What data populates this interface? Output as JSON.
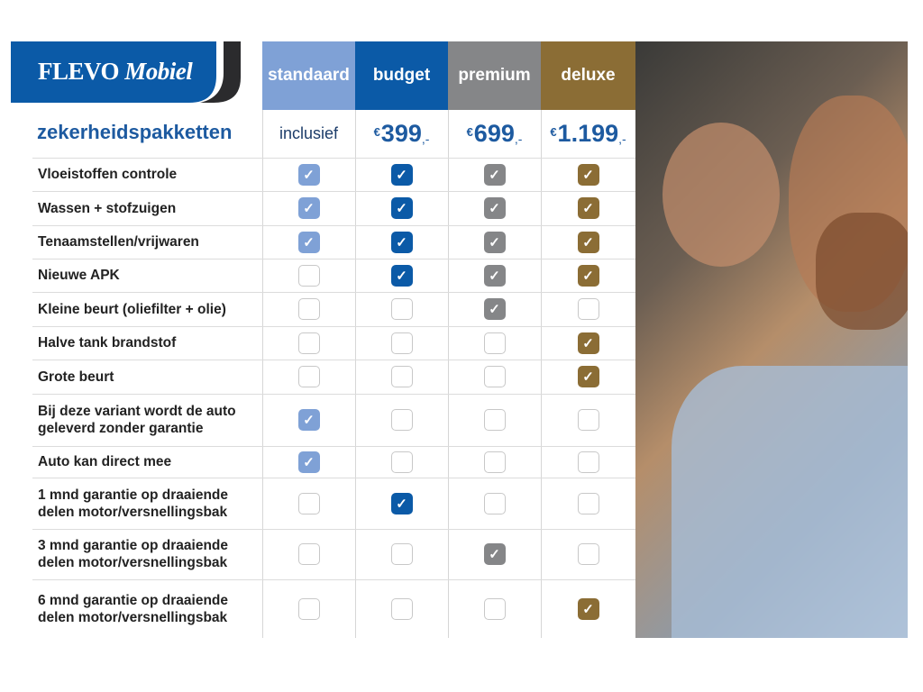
{
  "logo": {
    "brand": "FLEVO",
    "brand_italic": "Mobiel"
  },
  "title": "zekerheidspakketten",
  "columns": [
    {
      "name": "standaard",
      "price": "inclusief",
      "color": "#7fa1d6"
    },
    {
      "name": "budget",
      "price_symbol": "€",
      "price": "399",
      "price_suffix": ",-",
      "color": "#0b5aa7"
    },
    {
      "name": "premium",
      "price_symbol": "€",
      "price": "699",
      "price_suffix": ",-",
      "color": "#858688"
    },
    {
      "name": "deluxe",
      "price_symbol": "€",
      "price": "1.199",
      "price_suffix": ",-",
      "color": "#8b6d35"
    }
  ],
  "rows": [
    {
      "label": "Vloeistoffen controle",
      "checks": [
        1,
        1,
        1,
        1
      ]
    },
    {
      "label": "Wassen + stofzuigen",
      "checks": [
        1,
        1,
        1,
        1
      ]
    },
    {
      "label": "Tenaamstellen/vrijwaren",
      "checks": [
        1,
        1,
        1,
        1
      ]
    },
    {
      "label": "Nieuwe APK",
      "checks": [
        0,
        1,
        1,
        1
      ]
    },
    {
      "label": "Kleine beurt (oliefilter + olie)",
      "checks": [
        0,
        0,
        1,
        0
      ]
    },
    {
      "label": "Halve tank brandstof",
      "checks": [
        0,
        0,
        0,
        1
      ]
    },
    {
      "label": "Grote beurt",
      "checks": [
        0,
        0,
        0,
        1
      ]
    },
    {
      "label": "Bij deze variant wordt de auto geleverd zonder garantie",
      "checks": [
        1,
        0,
        0,
        0
      ]
    },
    {
      "label": "Auto kan direct mee",
      "checks": [
        1,
        0,
        0,
        0
      ]
    },
    {
      "label": "1 mnd garantie op draaiende delen motor/versnellingsbak",
      "checks": [
        0,
        1,
        0,
        0
      ]
    },
    {
      "label": "3 mnd garantie op draaiende delen motor/versnellingsbak",
      "checks": [
        0,
        0,
        1,
        0
      ]
    },
    {
      "label": "6 mnd garantie op draaiende delen motor/versnellingsbak",
      "checks": [
        0,
        0,
        0,
        1
      ]
    }
  ]
}
